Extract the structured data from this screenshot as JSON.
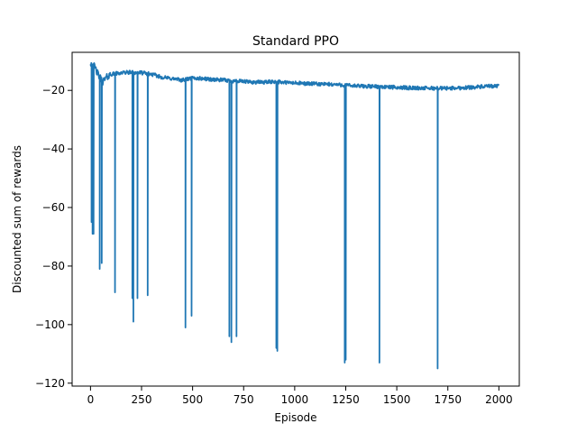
{
  "chart_data": {
    "type": "line",
    "title": "Standard PPO",
    "xlabel": "Episode",
    "ylabel": "Discounted sum of rewards",
    "xlim": [
      -90,
      2100
    ],
    "ylim": [
      -121,
      -7
    ],
    "xticks": [
      0,
      250,
      500,
      750,
      1000,
      1250,
      1500,
      1750,
      2000
    ],
    "xtick_labels": [
      "0",
      "250",
      "500",
      "750",
      "1000",
      "1250",
      "1500",
      "1750",
      "2000"
    ],
    "yticks": [
      -120,
      -100,
      -80,
      -60,
      -40,
      -20
    ],
    "ytick_labels": [
      "−120",
      "−100",
      "−80",
      "−60",
      "−40",
      "−20"
    ],
    "grid": false,
    "legend": "none",
    "series": [
      {
        "color": "#1f77b4",
        "baseline": [
          [
            0,
            -10.5
          ],
          [
            20,
            -12
          ],
          [
            40,
            -15
          ],
          [
            60,
            -17
          ],
          [
            80,
            -15.5
          ],
          [
            100,
            -14.5
          ],
          [
            150,
            -14
          ],
          [
            200,
            -13.8
          ],
          [
            250,
            -14
          ],
          [
            300,
            -14.5
          ],
          [
            350,
            -15.5
          ],
          [
            400,
            -16
          ],
          [
            450,
            -16.5
          ],
          [
            500,
            -15.8
          ],
          [
            550,
            -16
          ],
          [
            600,
            -16.3
          ],
          [
            650,
            -16.5
          ],
          [
            700,
            -16.8
          ],
          [
            750,
            -17
          ],
          [
            800,
            -17.2
          ],
          [
            850,
            -17.2
          ],
          [
            900,
            -17
          ],
          [
            950,
            -17.3
          ],
          [
            1000,
            -17.5
          ],
          [
            1100,
            -17.8
          ],
          [
            1200,
            -18
          ],
          [
            1300,
            -18.5
          ],
          [
            1400,
            -18.7
          ],
          [
            1500,
            -19
          ],
          [
            1600,
            -19.2
          ],
          [
            1700,
            -19.3
          ],
          [
            1800,
            -19.2
          ],
          [
            1900,
            -18.8
          ],
          [
            2000,
            -18.5
          ]
        ],
        "dips": [
          [
            5,
            -65
          ],
          [
            10,
            -69
          ],
          [
            15,
            -69
          ],
          [
            45,
            -81
          ],
          [
            55,
            -79
          ],
          [
            120,
            -89
          ],
          [
            205,
            -91
          ],
          [
            210,
            -99
          ],
          [
            230,
            -91
          ],
          [
            280,
            -90
          ],
          [
            465,
            -101
          ],
          [
            495,
            -97
          ],
          [
            680,
            -104
          ],
          [
            690,
            -106
          ],
          [
            715,
            -104
          ],
          [
            910,
            -108
          ],
          [
            915,
            -109
          ],
          [
            1245,
            -113
          ],
          [
            1250,
            -112
          ],
          [
            1415,
            -113
          ],
          [
            1700,
            -115
          ]
        ]
      }
    ]
  }
}
